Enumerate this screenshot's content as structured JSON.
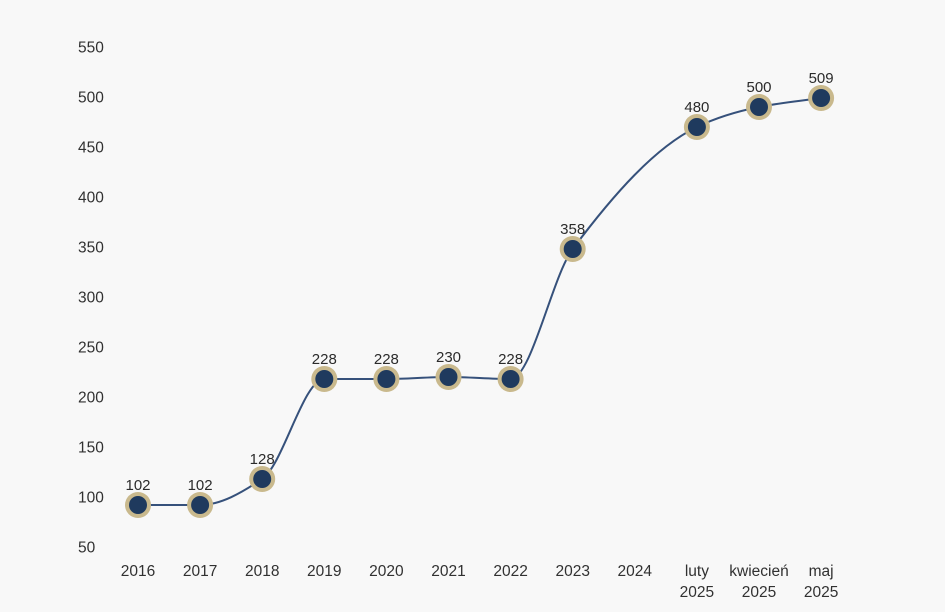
{
  "chart_data": {
    "type": "line",
    "title": "",
    "xlabel": "",
    "ylabel": "",
    "categories": [
      [
        "2016"
      ],
      [
        "2017"
      ],
      [
        "2018"
      ],
      [
        "2019"
      ],
      [
        "2020"
      ],
      [
        "2021"
      ],
      [
        "2022"
      ],
      [
        "2023"
      ],
      [
        "2024"
      ],
      [
        "luty",
        "2025"
      ],
      [
        "kwiecień",
        "2025"
      ],
      [
        "maj",
        "2025"
      ]
    ],
    "values": [
      102,
      102,
      128,
      228,
      228,
      230,
      228,
      358,
      null,
      480,
      500,
      509
    ],
    "point_labels": [
      "102",
      "102",
      "128",
      "228",
      "228",
      "230",
      "228",
      "358",
      null,
      "480",
      "500",
      "509"
    ],
    "y_ticks": [
      550,
      500,
      450,
      400,
      350,
      300,
      250,
      200,
      150,
      100,
      50
    ],
    "ylim": [
      50,
      550
    ],
    "grid": false,
    "legend_position": "none",
    "show_point_labels": true,
    "line_style": "smooth-monotone",
    "colors": {
      "background": "#f8f8f8",
      "line": "#36517b",
      "marker_fill": "#1f3a5e",
      "marker_ring": "#c9b98d",
      "tick_text": "#313131",
      "label_text": "#2b2b2b"
    }
  }
}
